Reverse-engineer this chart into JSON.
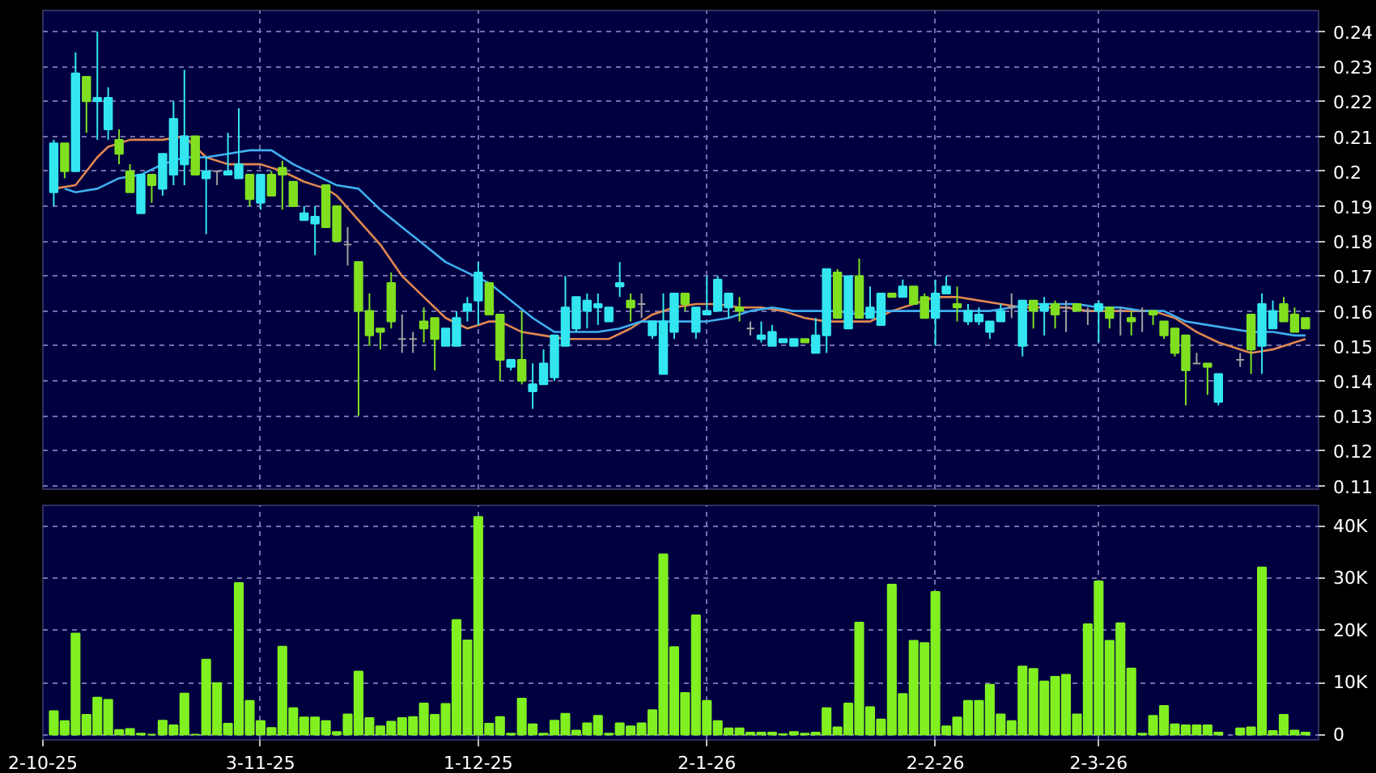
{
  "chart_data": [
    {
      "type": "candlestick",
      "categories": [
        null,
        null,
        null,
        null,
        null,
        null,
        null,
        null,
        null,
        null,
        null,
        null,
        null,
        null,
        null,
        null,
        null,
        null,
        null,
        null,
        null,
        null,
        null,
        null,
        null,
        null,
        null,
        null,
        null,
        null,
        null,
        null,
        null,
        null,
        null,
        null,
        null,
        null,
        null,
        null,
        null,
        null,
        null,
        null,
        null,
        null,
        null,
        null,
        null,
        null,
        null,
        null,
        null,
        null,
        null,
        null,
        null,
        null,
        null,
        null,
        null,
        null,
        null,
        null,
        null,
        null,
        null,
        null,
        null,
        null,
        null,
        null,
        null,
        null,
        null,
        null,
        null,
        null,
        null,
        null,
        null,
        null,
        null,
        null,
        null,
        null,
        null,
        null,
        null,
        null,
        null,
        null,
        null,
        null,
        null,
        null,
        null,
        null,
        null,
        null,
        null,
        null,
        null,
        null,
        null,
        null,
        null,
        null,
        null,
        null,
        null,
        null,
        null,
        null,
        null,
        null,
        null
      ],
      "ohlc": [
        null,
        [
          0.194,
          0.209,
          0.19,
          0.208
        ],
        [
          0.208,
          0.208,
          0.198,
          0.2
        ],
        [
          0.2,
          0.234,
          0.2,
          0.228
        ],
        [
          0.227,
          0.227,
          0.211,
          0.22
        ],
        [
          0.22,
          0.24,
          0.209,
          0.221
        ],
        [
          0.212,
          0.224,
          0.209,
          0.221
        ],
        [
          0.209,
          0.212,
          0.202,
          0.205
        ],
        [
          0.2,
          0.202,
          0.194,
          0.194
        ],
        [
          0.188,
          0.199,
          0.188,
          0.199
        ],
        [
          0.199,
          0.199,
          0.191,
          0.196
        ],
        [
          0.195,
          0.205,
          0.193,
          0.205
        ],
        [
          0.199,
          0.22,
          0.196,
          0.215
        ],
        [
          0.202,
          0.229,
          0.196,
          0.21
        ],
        [
          0.21,
          0.21,
          0.199,
          0.199
        ],
        [
          0.198,
          0.204,
          0.182,
          0.2
        ],
        [
          0.2,
          0.2,
          0.196,
          0.2
        ],
        [
          0.199,
          0.211,
          0.199,
          0.2
        ],
        [
          0.198,
          0.218,
          0.198,
          0.202
        ],
        [
          0.199,
          0.199,
          0.19,
          0.192
        ],
        [
          0.191,
          0.199,
          0.189,
          0.199
        ],
        [
          0.199,
          0.2,
          0.193,
          0.193
        ],
        [
          0.201,
          0.203,
          0.189,
          0.199
        ],
        [
          0.197,
          0.197,
          0.19,
          0.19
        ],
        [
          0.186,
          0.19,
          0.186,
          0.188
        ],
        [
          0.185,
          0.19,
          0.176,
          0.187
        ],
        [
          0.196,
          0.196,
          0.184,
          0.184
        ],
        [
          0.19,
          0.19,
          0.18,
          0.18
        ],
        [
          0.179,
          0.184,
          0.173,
          0.179
        ],
        [
          0.174,
          0.174,
          0.13,
          0.16
        ],
        [
          0.16,
          0.165,
          0.15,
          0.153
        ],
        [
          0.155,
          0.155,
          0.149,
          0.154
        ],
        [
          0.168,
          0.171,
          0.155,
          0.157
        ],
        [
          0.152,
          0.159,
          0.148,
          0.152
        ],
        [
          0.152,
          0.154,
          0.148,
          0.152
        ],
        [
          0.157,
          0.161,
          0.151,
          0.155
        ],
        [
          0.158,
          0.158,
          0.143,
          0.152
        ],
        [
          0.15,
          0.155,
          0.15,
          0.155
        ],
        [
          0.15,
          0.16,
          0.15,
          0.158
        ],
        [
          0.16,
          0.164,
          0.157,
          0.162
        ],
        [
          0.163,
          0.174,
          0.156,
          0.171
        ],
        [
          0.168,
          0.168,
          0.159,
          0.159
        ],
        [
          0.159,
          0.159,
          0.14,
          0.146
        ],
        [
          0.144,
          0.146,
          0.143,
          0.146
        ],
        [
          0.146,
          0.16,
          0.139,
          0.14
        ],
        [
          0.137,
          0.145,
          0.132,
          0.139
        ],
        [
          0.139,
          0.149,
          0.139,
          0.145
        ],
        [
          0.141,
          0.153,
          0.14,
          0.153
        ],
        [
          0.15,
          0.17,
          0.15,
          0.161
        ],
        [
          0.155,
          0.164,
          0.154,
          0.164
        ],
        [
          0.16,
          0.165,
          0.155,
          0.163
        ],
        [
          0.161,
          0.165,
          0.156,
          0.162
        ],
        [
          0.157,
          0.161,
          0.157,
          0.161
        ],
        [
          0.167,
          0.174,
          0.164,
          0.168
        ],
        [
          0.163,
          0.165,
          0.157,
          0.161
        ],
        [
          0.162,
          0.165,
          0.158,
          0.162
        ],
        [
          0.153,
          0.157,
          0.152,
          0.157
        ],
        [
          0.142,
          0.165,
          0.142,
          0.157
        ],
        [
          0.154,
          0.165,
          0.152,
          0.165
        ],
        [
          0.165,
          0.165,
          0.16,
          0.162
        ],
        [
          0.154,
          0.161,
          0.152,
          0.161
        ],
        [
          0.159,
          0.17,
          0.159,
          0.16
        ],
        [
          0.16,
          0.17,
          0.16,
          0.169
        ],
        [
          0.161,
          0.165,
          0.158,
          0.165
        ],
        [
          0.161,
          0.164,
          0.157,
          0.16
        ],
        [
          0.155,
          0.157,
          0.153,
          0.155
        ],
        [
          0.152,
          0.157,
          0.151,
          0.153
        ],
        [
          0.15,
          0.156,
          0.15,
          0.154
        ],
        [
          0.151,
          0.152,
          0.151,
          0.152
        ],
        [
          0.15,
          0.152,
          0.15,
          0.152
        ],
        [
          0.152,
          0.152,
          0.151,
          0.151
        ],
        [
          0.148,
          0.158,
          0.148,
          0.153
        ],
        [
          0.153,
          0.172,
          0.148,
          0.172
        ],
        [
          0.171,
          0.172,
          0.158,
          0.158
        ],
        [
          0.155,
          0.17,
          0.155,
          0.17
        ],
        [
          0.17,
          0.175,
          0.158,
          0.158
        ],
        [
          0.158,
          0.167,
          0.158,
          0.161
        ],
        [
          0.156,
          0.165,
          0.156,
          0.165
        ],
        [
          0.165,
          0.165,
          0.164,
          0.164
        ],
        [
          0.164,
          0.169,
          0.164,
          0.167
        ],
        [
          0.167,
          0.167,
          0.162,
          0.162
        ],
        [
          0.164,
          0.165,
          0.158,
          0.158
        ],
        [
          0.158,
          0.169,
          0.15,
          0.165
        ],
        [
          0.165,
          0.17,
          0.165,
          0.167
        ],
        [
          0.162,
          0.167,
          0.157,
          0.161
        ],
        [
          0.157,
          0.162,
          0.156,
          0.16
        ],
        [
          0.157,
          0.161,
          0.156,
          0.159
        ],
        [
          0.154,
          0.157,
          0.152,
          0.157
        ],
        [
          0.157,
          0.162,
          0.157,
          0.16
        ],
        [
          0.161,
          0.165,
          0.158,
          0.161
        ],
        [
          0.15,
          0.163,
          0.147,
          0.163
        ],
        [
          0.163,
          0.163,
          0.155,
          0.16
        ],
        [
          0.16,
          0.164,
          0.153,
          0.162
        ],
        [
          0.162,
          0.163,
          0.155,
          0.159
        ],
        [
          0.161,
          0.163,
          0.154,
          0.161
        ],
        [
          0.162,
          0.162,
          0.16,
          0.16
        ],
        [
          0.16,
          0.161,
          0.156,
          0.16
        ],
        [
          0.16,
          0.163,
          0.151,
          0.162
        ],
        [
          0.161,
          0.161,
          0.155,
          0.158
        ],
        [
          0.16,
          0.161,
          0.153,
          0.16
        ],
        [
          0.158,
          0.16,
          0.153,
          0.157
        ],
        [
          0.16,
          0.161,
          0.154,
          0.16
        ],
        [
          0.16,
          0.16,
          0.156,
          0.159
        ],
        [
          0.157,
          0.157,
          0.152,
          0.153
        ],
        [
          0.155,
          0.155,
          0.147,
          0.148
        ],
        [
          0.153,
          0.153,
          0.133,
          0.143
        ],
        [
          0.145,
          0.148,
          0.145,
          0.145
        ],
        [
          0.145,
          0.145,
          0.136,
          0.144
        ],
        [
          0.134,
          0.142,
          0.133,
          0.142
        ],
        null,
        [
          0.146,
          0.148,
          0.144,
          0.146
        ],
        [
          0.159,
          0.159,
          0.142,
          0.149
        ],
        [
          0.15,
          0.165,
          0.142,
          0.162
        ],
        [
          0.155,
          0.163,
          0.155,
          0.16
        ],
        [
          0.162,
          0.164,
          0.157,
          0.157
        ],
        [
          0.159,
          0.161,
          0.154,
          0.154
        ],
        [
          0.158,
          0.158,
          0.155,
          0.155
        ]
      ],
      "colors": [
        null,
        "#33e6f0",
        "#80e020",
        "#33e6f0",
        "#80e020",
        "#33e6f0",
        "#33e6f0",
        "#80e020",
        "#80e020",
        "#33e6f0",
        "#80e020",
        "#33e6f0",
        "#33e6f0",
        "#33e6f0",
        "#80e020",
        "#33e6f0",
        "#a0a0a0",
        "#33e6f0",
        "#33e6f0",
        "#80e020",
        "#33e6f0",
        "#80e020",
        "#80e020",
        "#80e020",
        "#33e6f0",
        "#33e6f0",
        "#80e020",
        "#80e020",
        "#a0a0a0",
        "#80e020",
        "#80e020",
        "#80e020",
        "#80e020",
        "#a0a0a0",
        "#a0a0a0",
        "#80e020",
        "#80e020",
        "#33e6f0",
        "#33e6f0",
        "#33e6f0",
        "#33e6f0",
        "#80e020",
        "#80e020",
        "#33e6f0",
        "#80e020",
        "#33e6f0",
        "#33e6f0",
        "#33e6f0",
        "#33e6f0",
        "#33e6f0",
        "#33e6f0",
        "#33e6f0",
        "#33e6f0",
        "#33e6f0",
        "#80e020",
        "#a0a0a0",
        "#33e6f0",
        "#33e6f0",
        "#33e6f0",
        "#80e020",
        "#33e6f0",
        "#33e6f0",
        "#33e6f0",
        "#33e6f0",
        "#80e020",
        "#a0a0a0",
        "#33e6f0",
        "#33e6f0",
        "#33e6f0",
        "#33e6f0",
        "#80e020",
        "#33e6f0",
        "#33e6f0",
        "#80e020",
        "#33e6f0",
        "#80e020",
        "#33e6f0",
        "#33e6f0",
        "#80e020",
        "#33e6f0",
        "#80e020",
        "#80e020",
        "#33e6f0",
        "#33e6f0",
        "#80e020",
        "#33e6f0",
        "#33e6f0",
        "#33e6f0",
        "#33e6f0",
        "#a0a0a0",
        "#33e6f0",
        "#80e020",
        "#33e6f0",
        "#80e020",
        "#a0a0a0",
        "#80e020",
        "#a0a0a0",
        "#33e6f0",
        "#80e020",
        "#a0a0a0",
        "#80e020",
        "#a0a0a0",
        "#80e020",
        "#80e020",
        "#80e020",
        "#80e020",
        "#a0a0a0",
        "#80e020",
        "#33e6f0",
        null,
        "#a0a0a0",
        "#80e020",
        "#33e6f0",
        "#33e6f0",
        "#80e020",
        "#80e020",
        "#80e020"
      ],
      "series": [
        {
          "type": "line",
          "color": "#e08850",
          "values": [
            null,
            0.195,
            null,
            0.196,
            null,
            0.204,
            0.207,
            null,
            0.209,
            null,
            null,
            0.209,
            null,
            0.21,
            null,
            0.204,
            null,
            0.202,
            null,
            null,
            0.202,
            null,
            0.2,
            null,
            0.197,
            null,
            0.195,
            0.193,
            null,
            0.186,
            null,
            0.179,
            null,
            0.17,
            null,
            0.164,
            null,
            0.158,
            null,
            0.155,
            0.156,
            0.157,
            0.157,
            null,
            0.154,
            null,
            0.153,
            null,
            0.152,
            null,
            0.152,
            null,
            0.152,
            null,
            0.155,
            null,
            0.159,
            null,
            0.161,
            null,
            0.162,
            null,
            0.162,
            null,
            0.161,
            null,
            0.161,
            null,
            0.16,
            null,
            0.158,
            null,
            0.157,
            null,
            0.157,
            null,
            0.157,
            null,
            0.16,
            null,
            0.162,
            null,
            0.164,
            null,
            0.164,
            null,
            0.163,
            null,
            0.162,
            null,
            0.161,
            null,
            0.161,
            null,
            0.161,
            null,
            0.16,
            null,
            0.16,
            null,
            0.16,
            null,
            0.16,
            null,
            0.158,
            null,
            0.154,
            null,
            0.151,
            null,
            null,
            0.148,
            null,
            0.149,
            null,
            0.151,
            0.152
          ]
        },
        {
          "type": "line",
          "color": "#40b0f0",
          "values": [
            null,
            null,
            0.195,
            0.194,
            null,
            0.195,
            null,
            0.198,
            null,
            0.199,
            null,
            0.202,
            null,
            0.204,
            null,
            0.204,
            null,
            0.205,
            null,
            0.206,
            null,
            0.206,
            null,
            0.202,
            null,
            0.199,
            null,
            0.196,
            null,
            0.195,
            null,
            0.189,
            null,
            0.184,
            null,
            0.179,
            null,
            0.174,
            null,
            0.171,
            null,
            0.168,
            null,
            0.163,
            null,
            0.158,
            null,
            0.154,
            null,
            0.154,
            null,
            0.154,
            null,
            0.155,
            null,
            0.157,
            null,
            0.157,
            null,
            0.157,
            null,
            0.157,
            null,
            0.158,
            null,
            0.16,
            null,
            0.161,
            null,
            0.16,
            null,
            0.16,
            null,
            0.16,
            null,
            0.159,
            null,
            0.16,
            null,
            0.16,
            null,
            0.16,
            null,
            0.16,
            null,
            0.16,
            null,
            0.16,
            null,
            0.161,
            null,
            0.162,
            null,
            0.162,
            null,
            0.162,
            null,
            0.161,
            null,
            0.161,
            null,
            0.16,
            null,
            0.16,
            null,
            0.157,
            null,
            0.156,
            null,
            0.155,
            null,
            0.154,
            null,
            0.154,
            null,
            0.153,
            0.153
          ]
        }
      ],
      "ylim": [
        0.109,
        0.246
      ],
      "yticks": [
        0.11,
        0.12,
        0.13,
        0.14,
        0.15,
        0.16,
        0.17,
        0.18,
        0.19,
        0.2,
        0.21,
        0.22,
        0.23,
        0.24
      ],
      "tick_labels": "y",
      "grid": true
    },
    {
      "type": "bar",
      "categories": [
        "2-10-25",
        null,
        null,
        null,
        null,
        null,
        null,
        null,
        null,
        null,
        null,
        null,
        null,
        null,
        null,
        null,
        null,
        null,
        null,
        null,
        "3-11-25",
        null,
        null,
        null,
        null,
        null,
        null,
        null,
        null,
        null,
        null,
        null,
        null,
        null,
        null,
        null,
        null,
        null,
        null,
        null,
        "1-12-25",
        null,
        null,
        null,
        null,
        null,
        null,
        null,
        null,
        null,
        null,
        null,
        null,
        null,
        null,
        null,
        null,
        null,
        null,
        null,
        null,
        "2-1-26",
        null,
        null,
        null,
        null,
        null,
        null,
        null,
        null,
        null,
        null,
        null,
        null,
        null,
        null,
        null,
        null,
        null,
        null,
        null,
        null,
        "2-2-26",
        null,
        null,
        null,
        null,
        null,
        null,
        null,
        null,
        null,
        null,
        null,
        null,
        null,
        null,
        "2-3-26",
        null,
        null,
        null,
        null,
        null,
        null,
        null,
        null,
        null,
        null,
        null,
        null,
        null,
        null,
        null,
        null,
        null,
        null,
        null
      ],
      "values": [
        null,
        4500,
        2600,
        19400,
        3800,
        7100,
        6700,
        900,
        1100,
        200,
        0,
        2700,
        1800,
        7900,
        0,
        14400,
        9900,
        2100,
        29100,
        6500,
        2600,
        1300,
        16900,
        5100,
        3300,
        3300,
        2600,
        500,
        3900,
        12100,
        3200,
        1600,
        2500,
        3200,
        3400,
        6000,
        3800,
        5900,
        22000,
        18100,
        41800,
        2100,
        3400,
        200,
        6900,
        2000,
        200,
        2700,
        4000,
        800,
        2200,
        3600,
        200,
        2200,
        1600,
        2200,
        4700,
        34600,
        16800,
        8000,
        22900,
        6500,
        2600,
        1200,
        1200,
        400,
        400,
        400,
        100,
        500,
        200,
        400,
        5100,
        1400,
        6000,
        21500,
        5300,
        2900,
        28800,
        7800,
        18000,
        17600,
        27400,
        1600,
        3300,
        6500,
        6500,
        9600,
        3900,
        2600,
        13100,
        12600,
        10200,
        11100,
        11500,
        3900,
        21200,
        29400,
        18000,
        21400,
        12700,
        200,
        3600,
        5500,
        2000,
        1800,
        1800,
        1800,
        400,
        null,
        1200,
        1400,
        32100,
        700,
        3800,
        800,
        400
      ],
      "color": "#80f020",
      "ylim": [
        -1000,
        44000
      ],
      "yticks": [
        {
          "value": 0,
          "label": "0"
        },
        {
          "value": 10000,
          "label": "10K"
        },
        {
          "value": 20000,
          "label": "20K"
        },
        {
          "value": 30000,
          "label": "30K"
        },
        {
          "value": 40000,
          "label": "40K"
        }
      ],
      "grid": true
    }
  ]
}
